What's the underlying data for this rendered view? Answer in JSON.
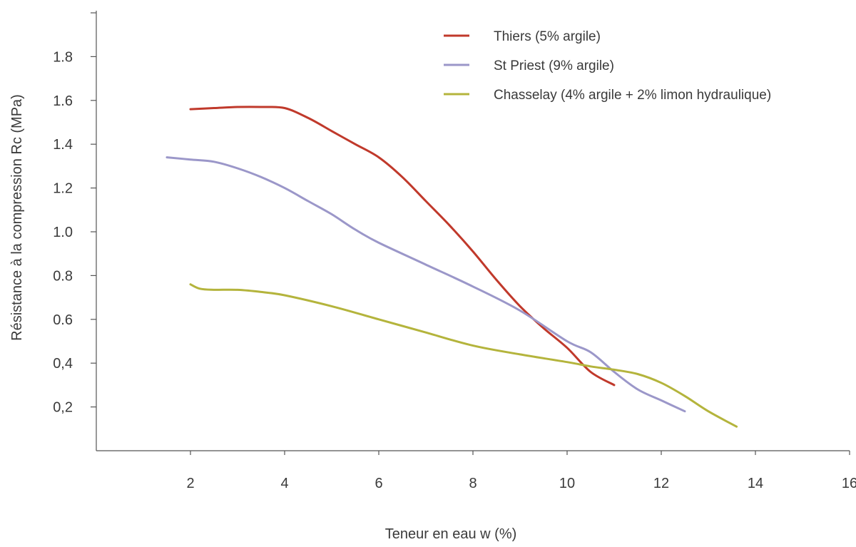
{
  "chart_data": {
    "type": "line",
    "title": "",
    "xlabel": "Teneur en eau w (%)",
    "ylabel": "Résistance à la compression Rc (MPa)",
    "xlim": [
      0,
      16
    ],
    "ylim": [
      0,
      2.0
    ],
    "x_ticks": [
      2,
      4,
      6,
      8,
      10,
      12,
      14,
      16
    ],
    "x_tick_labels": [
      "2",
      "4",
      "6",
      "8",
      "10",
      "12",
      "14",
      "16"
    ],
    "y_ticks": [
      0.2,
      0.4,
      0.6,
      0.8,
      1.0,
      1.2,
      1.4,
      1.6,
      1.8
    ],
    "y_tick_labels": [
      "0,2",
      "0,4",
      "0.6",
      "0.8",
      "1.0",
      "1.2",
      "1.4",
      "1.6",
      "1.8"
    ],
    "grid": false,
    "legend_position": "top-right",
    "series": [
      {
        "name": "Thiers (5% argile)",
        "color": "#c0392b",
        "x": [
          2.0,
          2.5,
          3.0,
          3.5,
          4.0,
          4.5,
          5.0,
          5.5,
          6.0,
          6.5,
          7.0,
          7.5,
          8.0,
          8.5,
          9.0,
          9.5,
          10.0,
          10.5,
          11.0
        ],
        "y": [
          1.56,
          1.565,
          1.57,
          1.57,
          1.565,
          1.52,
          1.46,
          1.4,
          1.34,
          1.25,
          1.14,
          1.03,
          0.91,
          0.78,
          0.66,
          0.56,
          0.47,
          0.36,
          0.3
        ]
      },
      {
        "name": "St Priest (9% argile)",
        "color": "#9b97c9",
        "x": [
          1.5,
          2.0,
          2.5,
          3.0,
          3.5,
          4.0,
          4.5,
          5.0,
          5.5,
          6.0,
          7.0,
          8.0,
          9.0,
          10.0,
          10.5,
          11.0,
          11.5,
          12.0,
          12.5
        ],
        "y": [
          1.34,
          1.33,
          1.32,
          1.29,
          1.25,
          1.2,
          1.14,
          1.08,
          1.01,
          0.95,
          0.85,
          0.75,
          0.64,
          0.5,
          0.45,
          0.36,
          0.28,
          0.23,
          0.18
        ]
      },
      {
        "name": "Chasselay (4% argile + 2% limon hydraulique)",
        "color": "#b4b43c",
        "x": [
          2.0,
          2.2,
          2.5,
          3.0,
          3.5,
          4.0,
          5.0,
          6.0,
          7.0,
          8.0,
          9.0,
          10.0,
          10.5,
          11.0,
          11.5,
          12.0,
          12.5,
          13.0,
          13.6
        ],
        "y": [
          0.76,
          0.74,
          0.735,
          0.735,
          0.725,
          0.71,
          0.66,
          0.6,
          0.54,
          0.48,
          0.44,
          0.405,
          0.385,
          0.37,
          0.35,
          0.31,
          0.25,
          0.18,
          0.11
        ]
      }
    ]
  }
}
